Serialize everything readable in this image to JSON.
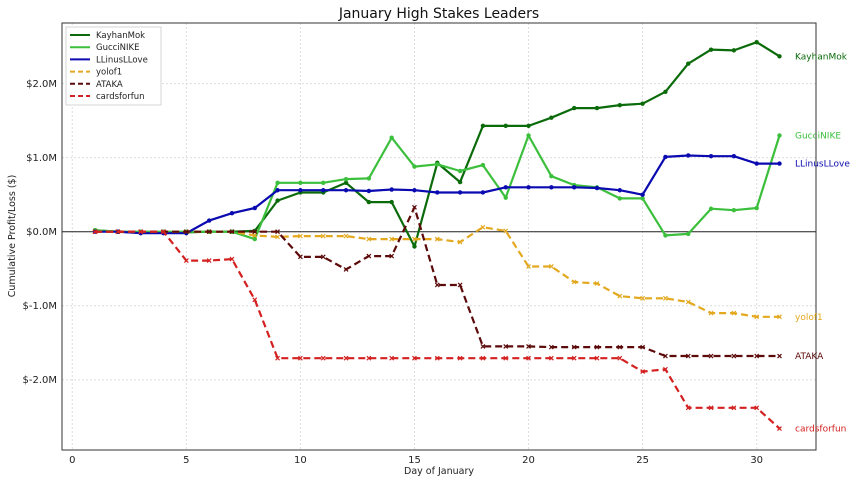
{
  "chart_data": {
    "type": "line",
    "title": "January High Stakes Leaders",
    "xlabel": "Day of January",
    "ylabel": "Cumulative Profit/Loss ($)",
    "xlim": [
      -0.45,
      32.6
    ],
    "ylim": [
      -2.95,
      2.82
    ],
    "x_ticks": [
      0,
      5,
      10,
      15,
      20,
      25,
      30
    ],
    "y_ticks": [
      {
        "value": 2,
        "label": "$2.0M"
      },
      {
        "value": 1,
        "label": "$1.0M"
      },
      {
        "value": 0,
        "label": "$0.0M"
      },
      {
        "value": -1,
        "label": "$-1.0M"
      },
      {
        "value": -2,
        "label": "$-2.0M"
      }
    ],
    "y_units": "millions USD",
    "grid": true,
    "legend_position": "top-left",
    "x": [
      1,
      2,
      3,
      4,
      5,
      6,
      7,
      8,
      9,
      10,
      11,
      12,
      13,
      14,
      15,
      16,
      17,
      18,
      19,
      20,
      21,
      22,
      23,
      24,
      25,
      26,
      27,
      28,
      29,
      30,
      31
    ],
    "series": [
      {
        "name": "KayhanMok",
        "color": "#0b6b0b",
        "dashed": false,
        "marker": "dot",
        "values": [
          0.02,
          0,
          -0.01,
          -0.01,
          -0.01,
          0,
          0,
          0.01,
          0.42,
          0.53,
          0.53,
          0.66,
          0.4,
          0.4,
          -0.2,
          0.93,
          0.67,
          1.43,
          1.43,
          1.43,
          1.54,
          1.67,
          1.67,
          1.71,
          1.73,
          1.89,
          2.27,
          2.46,
          2.45,
          2.56,
          2.37
        ]
      },
      {
        "name": "GucciNIKE",
        "color": "#3cbf3c",
        "dashed": false,
        "marker": "dot",
        "values": [
          0.02,
          0,
          0,
          0,
          0,
          0,
          0,
          -0.1,
          0.66,
          0.66,
          0.66,
          0.71,
          0.72,
          1.27,
          0.88,
          0.91,
          0.82,
          0.9,
          0.46,
          1.3,
          0.75,
          0.63,
          0.6,
          0.45,
          0.45,
          -0.05,
          -0.03,
          0.31,
          0.29,
          0.32,
          1.3
        ]
      },
      {
        "name": "LLinusLLove",
        "color": "#0a0ab0",
        "dashed": false,
        "marker": "dot",
        "values": [
          0,
          0,
          -0.02,
          -0.02,
          -0.02,
          0.15,
          0.25,
          0.32,
          0.56,
          0.56,
          0.56,
          0.56,
          0.55,
          0.57,
          0.56,
          0.53,
          0.53,
          0.53,
          0.6,
          0.6,
          0.6,
          0.6,
          0.59,
          0.56,
          0.5,
          1.01,
          1.03,
          1.02,
          1.02,
          0.92,
          0.92
        ]
      },
      {
        "name": "yolof1",
        "color": "#e3a81e",
        "dashed": true,
        "marker": "x",
        "values": [
          0,
          0,
          0,
          0,
          0,
          0,
          0,
          -0.05,
          -0.07,
          -0.06,
          -0.06,
          -0.06,
          -0.1,
          -0.1,
          -0.1,
          -0.1,
          -0.14,
          0.06,
          0.01,
          -0.47,
          -0.47,
          -0.68,
          -0.7,
          -0.87,
          -0.9,
          -0.9,
          -0.95,
          -1.1,
          -1.1,
          -1.15,
          -1.15
        ]
      },
      {
        "name": "ATAKA",
        "color": "#5c0a0a",
        "dashed": true,
        "marker": "x",
        "values": [
          0,
          0,
          0,
          0,
          0,
          0,
          0,
          0,
          0,
          -0.34,
          -0.34,
          -0.51,
          -0.33,
          -0.33,
          0.33,
          -0.72,
          -0.72,
          -1.55,
          -1.55,
          -1.55,
          -1.56,
          -1.56,
          -1.56,
          -1.56,
          -1.56,
          -1.68,
          -1.68,
          -1.68,
          -1.68,
          -1.68,
          -1.68
        ]
      },
      {
        "name": "cardsforfun",
        "color": "#d42020",
        "dashed": true,
        "marker": "x",
        "values": [
          0,
          0,
          0,
          0,
          -0.39,
          -0.39,
          -0.37,
          -0.92,
          -1.71,
          -1.71,
          -1.71,
          -1.71,
          -1.71,
          -1.71,
          -1.71,
          -1.71,
          -1.71,
          -1.71,
          -1.71,
          -1.71,
          -1.71,
          -1.71,
          -1.71,
          -1.71,
          -1.89,
          -1.86,
          -2.38,
          -2.38,
          -2.38,
          -2.38,
          -2.66
        ]
      }
    ]
  }
}
